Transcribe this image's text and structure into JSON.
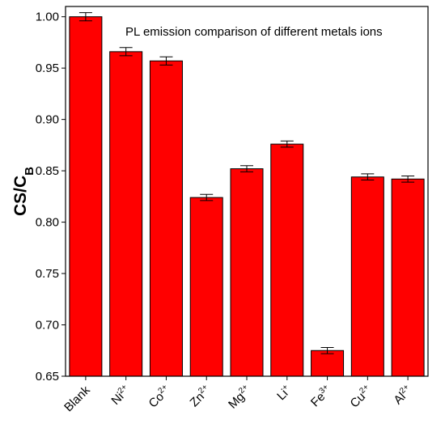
{
  "chart_data": {
    "type": "bar",
    "title": "PL emission comparison of different metals ions",
    "ylabel": {
      "main": "CS/C",
      "sub": "B"
    },
    "xlabel": "",
    "ylim": [
      0.65,
      1.01
    ],
    "yticks": [
      "0.65",
      "0.70",
      "0.75",
      "0.80",
      "0.85",
      "0.90",
      "0.95",
      "1.00"
    ],
    "categories": [
      {
        "base": "Blank",
        "sup": ""
      },
      {
        "base": "Ni",
        "sup": "2+"
      },
      {
        "base": "Co",
        "sup": "2+"
      },
      {
        "base": "Zn",
        "sup": "2+"
      },
      {
        "base": "Mg",
        "sup": "2+"
      },
      {
        "base": "Li",
        "sup": "+"
      },
      {
        "base": "Fe",
        "sup": "3+"
      },
      {
        "base": "Cu",
        "sup": "2+"
      },
      {
        "base": "Al",
        "sup": "2+"
      }
    ],
    "values": [
      1.0,
      0.966,
      0.957,
      0.824,
      0.852,
      0.876,
      0.675,
      0.844,
      0.842
    ],
    "errors": [
      0.004,
      0.004,
      0.004,
      0.003,
      0.003,
      0.003,
      0.003,
      0.003,
      0.003
    ],
    "bar_color": "#ff0000",
    "grid": false,
    "legend": "none"
  }
}
